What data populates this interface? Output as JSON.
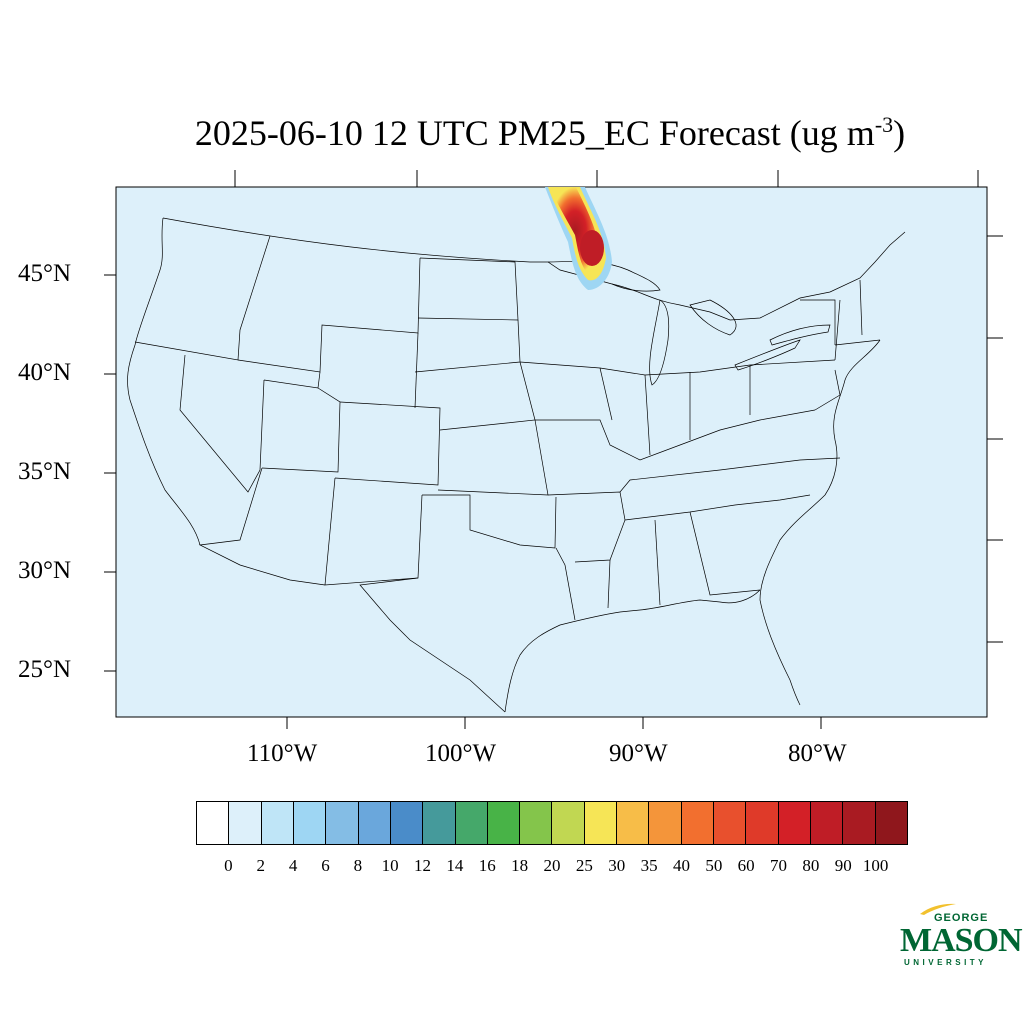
{
  "title": {
    "main": "2025-06-10 12 UTC PM25_EC Forecast (ug m",
    "sup": "-3",
    "close": ")"
  },
  "map": {
    "ocean_color": "#ddf0fa",
    "lat_labels": [
      "45°N",
      "40°N",
      "35°N",
      "30°N",
      "25°N"
    ],
    "lon_labels": [
      "110°W",
      "100°W",
      "90°W",
      "80°W"
    ]
  },
  "colorbar": {
    "colors": [
      "#ffffff",
      "#ddf0fa",
      "#bfe5f7",
      "#9ed6f3",
      "#84bde5",
      "#6aa7dc",
      "#4a8cc9",
      "#459a9b",
      "#45a86a",
      "#48b347",
      "#84c54b",
      "#c1d752",
      "#f6e556",
      "#f7bd48",
      "#f4953a",
      "#f26f2f",
      "#e8502d",
      "#df3a29",
      "#d32027",
      "#bf1d26",
      "#a91b22",
      "#8f171c"
    ],
    "labels": [
      "0",
      "2",
      "4",
      "6",
      "8",
      "10",
      "12",
      "14",
      "16",
      "18",
      "20",
      "25",
      "30",
      "35",
      "40",
      "50",
      "60",
      "70",
      "80",
      "90",
      "100"
    ]
  },
  "logo": {
    "top": "GEORGE",
    "main": "MASON",
    "bottom": "UNIVERSITY",
    "color": "#006633",
    "accent": "#f2c12e"
  }
}
